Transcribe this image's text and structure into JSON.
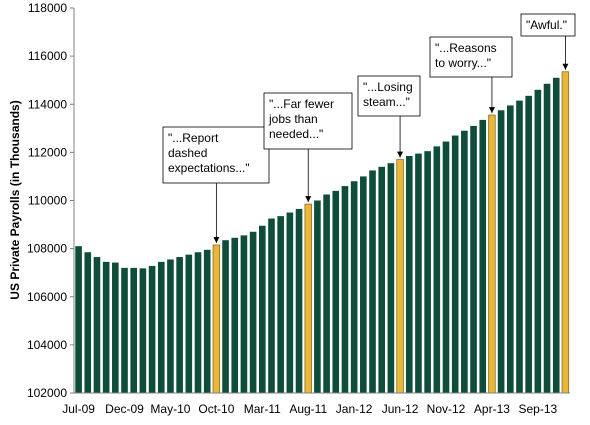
{
  "chart_data": {
    "type": "bar",
    "ylabel": "US Private Payrolls (in Thousands)",
    "xlabel": "",
    "ylim": [
      102000,
      118000
    ],
    "y_ticks": [
      102000,
      104000,
      106000,
      108000,
      110000,
      112000,
      114000,
      116000,
      118000
    ],
    "x_tick_labels": [
      "Jul-09",
      "Dec-09",
      "May-10",
      "Oct-10",
      "Mar-11",
      "Aug-11",
      "Jan-12",
      "Jun-12",
      "Nov-12",
      "Apr-13",
      "Sep-13"
    ],
    "x_tick_indices": [
      0,
      5,
      10,
      15,
      20,
      25,
      30,
      35,
      40,
      45,
      50
    ],
    "categories": [
      "Jul-09",
      "Aug-09",
      "Sep-09",
      "Oct-09",
      "Nov-09",
      "Dec-09",
      "Jan-10",
      "Feb-10",
      "Mar-10",
      "Apr-10",
      "May-10",
      "Jun-10",
      "Jul-10",
      "Aug-10",
      "Sep-10",
      "Oct-10",
      "Nov-10",
      "Dec-10",
      "Jan-11",
      "Feb-11",
      "Mar-11",
      "Apr-11",
      "May-11",
      "Jun-11",
      "Jul-11",
      "Aug-11",
      "Sep-11",
      "Oct-11",
      "Nov-11",
      "Dec-11",
      "Jan-12",
      "Feb-12",
      "Mar-12",
      "Apr-12",
      "May-12",
      "Jun-12",
      "Jul-12",
      "Aug-12",
      "Sep-12",
      "Oct-12",
      "Nov-12",
      "Dec-12",
      "Jan-13",
      "Feb-13",
      "Mar-13",
      "Apr-13",
      "May-13",
      "Jun-13",
      "Jul-13",
      "Aug-13",
      "Sep-13",
      "Oct-13",
      "Nov-13",
      "Dec-13"
    ],
    "values": [
      108100,
      107850,
      107650,
      107450,
      107420,
      107200,
      107200,
      107180,
      107280,
      107450,
      107550,
      107650,
      107750,
      107850,
      107950,
      108150,
      108350,
      108450,
      108550,
      108700,
      108950,
      109250,
      109350,
      109500,
      109650,
      109850,
      110000,
      110250,
      110400,
      110600,
      110800,
      111000,
      111250,
      111400,
      111550,
      111700,
      111850,
      111950,
      112050,
      112250,
      112450,
      112700,
      112900,
      113100,
      113350,
      113550,
      113750,
      113950,
      114150,
      114350,
      114600,
      114850,
      115100,
      115350
    ],
    "colors": {
      "bar": "#0e4d3a",
      "highlight": "#e8b83a",
      "highlight_border": "#8a6d1e",
      "axis": "#808080"
    },
    "highlighted_indices": [
      15,
      25,
      35,
      45,
      53
    ],
    "annotations": [
      {
        "bar_index": 15,
        "lines": [
          "\"...Report",
          "dashed",
          "expectations...\""
        ]
      },
      {
        "bar_index": 25,
        "lines": [
          "\"...Far fewer",
          "jobs than",
          "needed...\""
        ]
      },
      {
        "bar_index": 35,
        "lines": [
          "\"...Losing",
          "steam...\""
        ]
      },
      {
        "bar_index": 45,
        "lines": [
          "\"...Reasons",
          "to worry...\""
        ]
      },
      {
        "bar_index": 53,
        "lines": [
          "\"Awful.\""
        ]
      }
    ]
  }
}
